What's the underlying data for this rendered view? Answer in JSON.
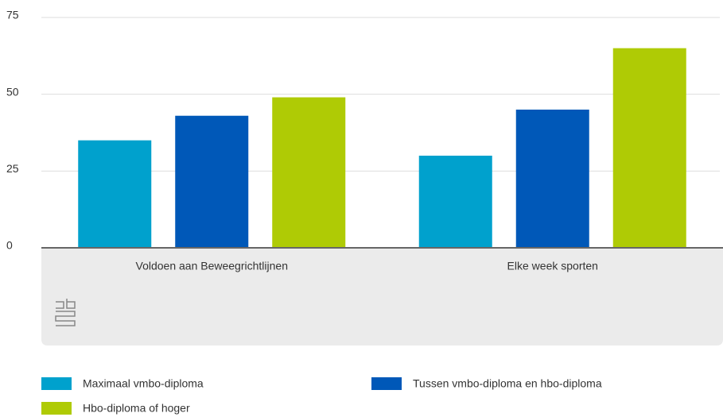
{
  "chart_data": {
    "type": "bar",
    "categories": [
      "Voldoen aan Beweegrichtlijnen",
      "Elke week sporten"
    ],
    "series": [
      {
        "name": "Maximaal vmbo-diploma",
        "color": "#00a1cd",
        "values": [
          35,
          30
        ]
      },
      {
        "name": "Tussen vmbo-diploma en hbo-diploma",
        "color": "#0058b8",
        "values": [
          43,
          45
        ]
      },
      {
        "name": "Hbo-diploma of hoger",
        "color": "#afcb05",
        "values": [
          49,
          65
        ]
      }
    ],
    "ylim": [
      0,
      75
    ],
    "yticks": [
      0,
      25,
      50,
      75
    ],
    "grid": true
  }
}
